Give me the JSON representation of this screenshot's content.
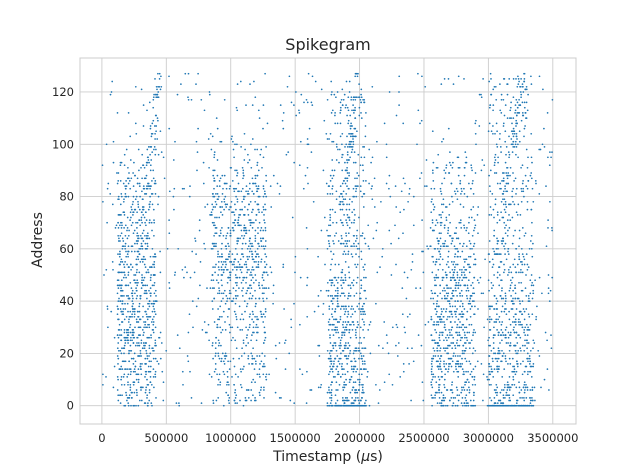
{
  "chart_data": {
    "type": "scatter",
    "title": "Spikegram",
    "xlabel_main": "Timestamp (",
    "xlabel_mu": "μ",
    "xlabel_tail": "s)",
    "ylabel": "Address",
    "xlim": [
      -170000,
      3680000
    ],
    "ylim": [
      -7,
      133
    ],
    "xticks": [
      0,
      500000,
      1000000,
      1500000,
      2000000,
      2500000,
      3000000,
      3500000
    ],
    "xtick_labels": [
      "0",
      "500000",
      "1000000",
      "1500000",
      "2000000",
      "2500000",
      "3000000",
      "3500000"
    ],
    "yticks": [
      0,
      20,
      40,
      60,
      80,
      100,
      120
    ],
    "ytick_labels": [
      "0",
      "20",
      "40",
      "60",
      "80",
      "100",
      "120"
    ],
    "grid": true,
    "marker_color": "#1f77b4",
    "address_range": [
      0,
      127
    ],
    "time_range": [
      0,
      3500000
    ],
    "activity_bursts": [
      {
        "time_range": [
          120000,
          420000
        ],
        "address_range": [
          0,
          95
        ],
        "peak_address": 40,
        "sweep_top": [
          280000,
          450000
        ]
      },
      {
        "time_range": [
          850000,
          1280000
        ],
        "address_range": [
          0,
          90
        ],
        "peak_address": 60
      },
      {
        "time_range": [
          1750000,
          2050000
        ],
        "address_range": [
          0,
          120
        ],
        "peak_address": 20,
        "sweep_top": [
          1860000,
          1980000
        ]
      },
      {
        "time_range": [
          2550000,
          2900000
        ],
        "address_range": [
          0,
          95
        ],
        "peak_address": 35
      },
      {
        "time_range": [
          3000000,
          3350000
        ],
        "address_range": [
          0,
          127
        ],
        "peak_address": 20,
        "sweep_top": [
          3100000,
          3280000
        ]
      }
    ]
  }
}
